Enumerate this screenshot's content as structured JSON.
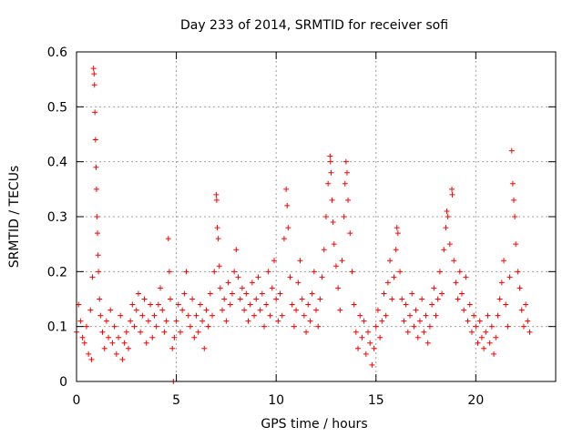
{
  "chart_data": {
    "type": "scatter",
    "title": "Day 233 of 2014, SRMTID for receiver sofi",
    "xlabel": "GPS time / hours",
    "ylabel": "SRMTID / TECUs",
    "xlim": [
      0,
      24
    ],
    "ylim": [
      0,
      0.6
    ],
    "xticks": [
      0,
      5,
      10,
      15,
      20
    ],
    "yticks": [
      0,
      0.1,
      0.2,
      0.3,
      0.4,
      0.5,
      0.6
    ],
    "xtick_labels": [
      "0",
      "5",
      "10",
      "15",
      "20"
    ],
    "ytick_labels": [
      "0",
      "0.1",
      "0.2",
      "0.3",
      "0.4",
      "0.5",
      "0.6"
    ],
    "grid": true,
    "marker": "plus",
    "color": "#ff0000",
    "series": [
      {
        "name": "SRMTID",
        "points": [
          [
            0.0,
            0.09
          ],
          [
            0.1,
            0.14
          ],
          [
            0.2,
            0.11
          ],
          [
            0.3,
            0.08
          ],
          [
            0.4,
            0.07
          ],
          [
            0.5,
            0.1
          ],
          [
            0.6,
            0.05
          ],
          [
            0.7,
            0.13
          ],
          [
            0.75,
            0.04
          ],
          [
            0.8,
            0.19
          ],
          [
            0.85,
            0.57
          ],
          [
            0.88,
            0.56
          ],
          [
            0.9,
            0.54
          ],
          [
            0.92,
            0.49
          ],
          [
            0.95,
            0.44
          ],
          [
            0.98,
            0.39
          ],
          [
            1.0,
            0.35
          ],
          [
            1.02,
            0.3
          ],
          [
            1.05,
            0.27
          ],
          [
            1.08,
            0.23
          ],
          [
            1.1,
            0.2
          ],
          [
            1.15,
            0.15
          ],
          [
            1.2,
            0.12
          ],
          [
            1.3,
            0.09
          ],
          [
            1.4,
            0.06
          ],
          [
            1.5,
            0.11
          ],
          [
            1.6,
            0.08
          ],
          [
            1.7,
            0.13
          ],
          [
            1.8,
            0.07
          ],
          [
            1.9,
            0.1
          ],
          [
            2.0,
            0.05
          ],
          [
            2.1,
            0.08
          ],
          [
            2.2,
            0.12
          ],
          [
            2.3,
            0.04
          ],
          [
            2.4,
            0.07
          ],
          [
            2.5,
            0.09
          ],
          [
            2.6,
            0.06
          ],
          [
            2.7,
            0.11
          ],
          [
            2.8,
            0.14
          ],
          [
            2.9,
            0.1
          ],
          [
            3.0,
            0.13
          ],
          [
            3.1,
            0.16
          ],
          [
            3.2,
            0.09
          ],
          [
            3.3,
            0.12
          ],
          [
            3.4,
            0.15
          ],
          [
            3.5,
            0.07
          ],
          [
            3.6,
            0.11
          ],
          [
            3.7,
            0.14
          ],
          [
            3.8,
            0.08
          ],
          [
            3.9,
            0.12
          ],
          [
            4.0,
            0.1
          ],
          [
            4.1,
            0.14
          ],
          [
            4.2,
            0.17
          ],
          [
            4.3,
            0.13
          ],
          [
            4.4,
            0.09
          ],
          [
            4.5,
            0.11
          ],
          [
            4.6,
            0.26
          ],
          [
            4.65,
            0.2
          ],
          [
            4.7,
            0.15
          ],
          [
            4.8,
            0.06
          ],
          [
            4.85,
            0.0
          ],
          [
            4.9,
            0.08
          ],
          [
            5.0,
            0.11
          ],
          [
            5.1,
            0.14
          ],
          [
            5.2,
            0.09
          ],
          [
            5.3,
            0.13
          ],
          [
            5.4,
            0.16
          ],
          [
            5.5,
            0.2
          ],
          [
            5.6,
            0.12
          ],
          [
            5.7,
            0.1
          ],
          [
            5.8,
            0.15
          ],
          [
            5.9,
            0.08
          ],
          [
            6.0,
            0.12
          ],
          [
            6.1,
            0.09
          ],
          [
            6.2,
            0.14
          ],
          [
            6.3,
            0.11
          ],
          [
            6.4,
            0.06
          ],
          [
            6.5,
            0.13
          ],
          [
            6.6,
            0.1
          ],
          [
            6.7,
            0.16
          ],
          [
            6.8,
            0.12
          ],
          [
            6.9,
            0.2
          ],
          [
            7.0,
            0.34
          ],
          [
            7.02,
            0.33
          ],
          [
            7.05,
            0.28
          ],
          [
            7.1,
            0.26
          ],
          [
            7.15,
            0.21
          ],
          [
            7.2,
            0.17
          ],
          [
            7.3,
            0.13
          ],
          [
            7.4,
            0.15
          ],
          [
            7.5,
            0.11
          ],
          [
            7.6,
            0.18
          ],
          [
            7.7,
            0.14
          ],
          [
            7.8,
            0.16
          ],
          [
            7.9,
            0.2
          ],
          [
            8.0,
            0.24
          ],
          [
            8.1,
            0.19
          ],
          [
            8.2,
            0.15
          ],
          [
            8.3,
            0.17
          ],
          [
            8.4,
            0.13
          ],
          [
            8.5,
            0.16
          ],
          [
            8.6,
            0.11
          ],
          [
            8.7,
            0.14
          ],
          [
            8.8,
            0.18
          ],
          [
            8.9,
            0.12
          ],
          [
            9.0,
            0.15
          ],
          [
            9.1,
            0.19
          ],
          [
            9.2,
            0.13
          ],
          [
            9.3,
            0.16
          ],
          [
            9.4,
            0.1
          ],
          [
            9.5,
            0.14
          ],
          [
            9.6,
            0.2
          ],
          [
            9.7,
            0.12
          ],
          [
            9.8,
            0.17
          ],
          [
            9.9,
            0.22
          ],
          [
            10.0,
            0.15
          ],
          [
            10.1,
            0.11
          ],
          [
            10.2,
            0.16
          ],
          [
            10.3,
            0.12
          ],
          [
            10.4,
            0.26
          ],
          [
            10.5,
            0.35
          ],
          [
            10.55,
            0.32
          ],
          [
            10.6,
            0.28
          ],
          [
            10.7,
            0.19
          ],
          [
            10.8,
            0.14
          ],
          [
            10.9,
            0.1
          ],
          [
            11.0,
            0.13
          ],
          [
            11.1,
            0.18
          ],
          [
            11.2,
            0.22
          ],
          [
            11.3,
            0.15
          ],
          [
            11.4,
            0.12
          ],
          [
            11.5,
            0.09
          ],
          [
            11.6,
            0.14
          ],
          [
            11.7,
            0.11
          ],
          [
            11.8,
            0.16
          ],
          [
            11.9,
            0.2
          ],
          [
            12.0,
            0.13
          ],
          [
            12.1,
            0.1
          ],
          [
            12.2,
            0.15
          ],
          [
            12.3,
            0.19
          ],
          [
            12.4,
            0.24
          ],
          [
            12.5,
            0.3
          ],
          [
            12.6,
            0.36
          ],
          [
            12.7,
            0.41
          ],
          [
            12.72,
            0.4
          ],
          [
            12.75,
            0.38
          ],
          [
            12.8,
            0.33
          ],
          [
            12.85,
            0.29
          ],
          [
            12.9,
            0.25
          ],
          [
            13.0,
            0.21
          ],
          [
            13.1,
            0.17
          ],
          [
            13.2,
            0.13
          ],
          [
            13.3,
            0.22
          ],
          [
            13.4,
            0.3
          ],
          [
            13.45,
            0.36
          ],
          [
            13.5,
            0.4
          ],
          [
            13.55,
            0.38
          ],
          [
            13.6,
            0.33
          ],
          [
            13.7,
            0.27
          ],
          [
            13.8,
            0.2
          ],
          [
            13.9,
            0.14
          ],
          [
            14.0,
            0.09
          ],
          [
            14.1,
            0.06
          ],
          [
            14.2,
            0.12
          ],
          [
            14.3,
            0.08
          ],
          [
            14.4,
            0.11
          ],
          [
            14.5,
            0.05
          ],
          [
            14.6,
            0.09
          ],
          [
            14.7,
            0.07
          ],
          [
            14.8,
            0.03
          ],
          [
            14.9,
            0.06
          ],
          [
            15.0,
            0.1
          ],
          [
            15.1,
            0.13
          ],
          [
            15.2,
            0.08
          ],
          [
            15.3,
            0.11
          ],
          [
            15.4,
            0.16
          ],
          [
            15.5,
            0.12
          ],
          [
            15.6,
            0.18
          ],
          [
            15.7,
            0.22
          ],
          [
            15.8,
            0.15
          ],
          [
            15.9,
            0.19
          ],
          [
            16.0,
            0.24
          ],
          [
            16.05,
            0.28
          ],
          [
            16.1,
            0.27
          ],
          [
            16.2,
            0.2
          ],
          [
            16.3,
            0.15
          ],
          [
            16.4,
            0.11
          ],
          [
            16.5,
            0.14
          ],
          [
            16.6,
            0.09
          ],
          [
            16.7,
            0.12
          ],
          [
            16.8,
            0.16
          ],
          [
            16.9,
            0.1
          ],
          [
            17.0,
            0.13
          ],
          [
            17.1,
            0.08
          ],
          [
            17.2,
            0.11
          ],
          [
            17.3,
            0.15
          ],
          [
            17.4,
            0.09
          ],
          [
            17.5,
            0.12
          ],
          [
            17.6,
            0.07
          ],
          [
            17.7,
            0.1
          ],
          [
            17.8,
            0.14
          ],
          [
            17.9,
            0.17
          ],
          [
            18.0,
            0.12
          ],
          [
            18.1,
            0.15
          ],
          [
            18.2,
            0.2
          ],
          [
            18.3,
            0.16
          ],
          [
            18.4,
            0.24
          ],
          [
            18.5,
            0.28
          ],
          [
            18.55,
            0.31
          ],
          [
            18.6,
            0.3
          ],
          [
            18.7,
            0.25
          ],
          [
            18.8,
            0.35
          ],
          [
            18.82,
            0.34
          ],
          [
            18.9,
            0.22
          ],
          [
            19.0,
            0.18
          ],
          [
            19.1,
            0.15
          ],
          [
            19.2,
            0.2
          ],
          [
            19.3,
            0.16
          ],
          [
            19.4,
            0.13
          ],
          [
            19.5,
            0.19
          ],
          [
            19.6,
            0.11
          ],
          [
            19.7,
            0.14
          ],
          [
            19.8,
            0.09
          ],
          [
            19.9,
            0.12
          ],
          [
            20.0,
            0.1
          ],
          [
            20.1,
            0.07
          ],
          [
            20.2,
            0.11
          ],
          [
            20.3,
            0.08
          ],
          [
            20.4,
            0.06
          ],
          [
            20.5,
            0.09
          ],
          [
            20.6,
            0.12
          ],
          [
            20.7,
            0.07
          ],
          [
            20.8,
            0.1
          ],
          [
            20.9,
            0.05
          ],
          [
            21.0,
            0.08
          ],
          [
            21.1,
            0.12
          ],
          [
            21.2,
            0.15
          ],
          [
            21.3,
            0.18
          ],
          [
            21.4,
            0.22
          ],
          [
            21.5,
            0.14
          ],
          [
            21.6,
            0.1
          ],
          [
            21.7,
            0.19
          ],
          [
            21.8,
            0.42
          ],
          [
            21.85,
            0.36
          ],
          [
            21.9,
            0.33
          ],
          [
            21.95,
            0.3
          ],
          [
            22.0,
            0.25
          ],
          [
            22.1,
            0.2
          ],
          [
            22.2,
            0.17
          ],
          [
            22.3,
            0.13
          ],
          [
            22.4,
            0.1
          ],
          [
            22.5,
            0.14
          ],
          [
            22.6,
            0.11
          ],
          [
            22.7,
            0.09
          ]
        ]
      }
    ]
  }
}
